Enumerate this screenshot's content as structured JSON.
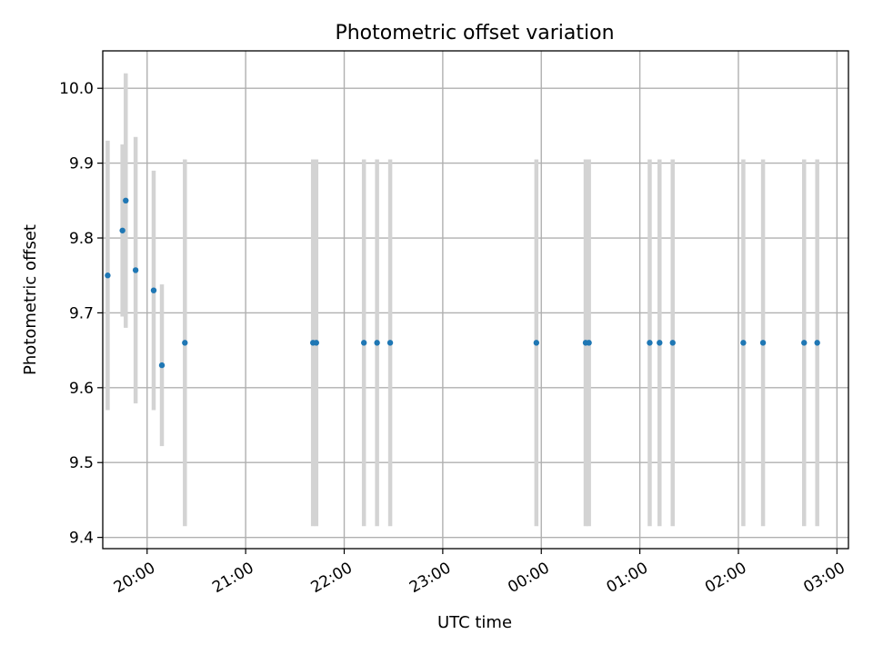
{
  "chart_data": {
    "type": "scatter",
    "title": "Photometric offset variation",
    "xlabel": "UTC time",
    "ylabel": "Photometric offset",
    "xlim": [
      "19:33",
      "03:07"
    ],
    "ylim": [
      9.385,
      10.05
    ],
    "grid": true,
    "x_ticks": [
      "20:00",
      "21:00",
      "22:00",
      "23:00",
      "00:00",
      "01:00",
      "02:00",
      "03:00"
    ],
    "y_ticks": [
      "9.4",
      "9.5",
      "9.6",
      "9.7",
      "9.8",
      "9.9",
      "10.0"
    ],
    "error_bar_color": "#d3d3d3",
    "marker_color": "#1f77b4",
    "points": [
      {
        "time": "19:36",
        "y": 9.75,
        "err": 0.18
      },
      {
        "time": "19:45",
        "y": 9.81,
        "err": 0.115
      },
      {
        "time": "19:47",
        "y": 9.85,
        "err": 0.17
      },
      {
        "time": "19:53",
        "y": 9.757,
        "err": 0.178
      },
      {
        "time": "20:04",
        "y": 9.73,
        "err": 0.16
      },
      {
        "time": "20:09",
        "y": 9.63,
        "err": 0.108
      },
      {
        "time": "20:23",
        "y": 9.66,
        "err": 0.245
      },
      {
        "time": "21:41",
        "y": 9.66,
        "err": 0.245
      },
      {
        "time": "21:43",
        "y": 9.66,
        "err": 0.245
      },
      {
        "time": "22:12",
        "y": 9.66,
        "err": 0.245
      },
      {
        "time": "22:20",
        "y": 9.66,
        "err": 0.245
      },
      {
        "time": "22:28",
        "y": 9.66,
        "err": 0.245
      },
      {
        "time": "23:57",
        "y": 9.66,
        "err": 0.245
      },
      {
        "time": "00:27",
        "y": 9.66,
        "err": 0.245
      },
      {
        "time": "00:29",
        "y": 9.66,
        "err": 0.245
      },
      {
        "time": "01:06",
        "y": 9.66,
        "err": 0.245
      },
      {
        "time": "01:12",
        "y": 9.66,
        "err": 0.245
      },
      {
        "time": "01:20",
        "y": 9.66,
        "err": 0.245
      },
      {
        "time": "02:03",
        "y": 9.66,
        "err": 0.245
      },
      {
        "time": "02:15",
        "y": 9.66,
        "err": 0.245
      },
      {
        "time": "02:40",
        "y": 9.66,
        "err": 0.245
      },
      {
        "time": "02:48",
        "y": 9.66,
        "err": 0.245
      }
    ]
  }
}
